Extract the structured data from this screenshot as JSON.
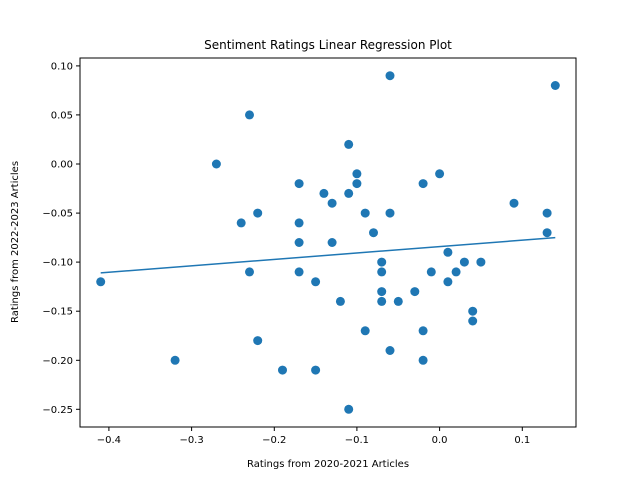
{
  "chart_data": {
    "type": "scatter",
    "title": "Sentiment Ratings Linear Regression Plot",
    "xlabel": "Ratings from 2020-2021 Articles",
    "ylabel": "Ratings from 2022-2023 Articles",
    "xlim": [
      -0.435,
      0.165
    ],
    "ylim": [
      -0.268,
      0.108
    ],
    "xticks": [
      -0.4,
      -0.3,
      -0.2,
      -0.1,
      0.0,
      0.1
    ],
    "xtick_labels": [
      "−0.4",
      "−0.3",
      "−0.2",
      "−0.1",
      "0.0",
      "0.1"
    ],
    "yticks": [
      0.1,
      0.05,
      0.0,
      -0.05,
      -0.1,
      -0.15,
      -0.2,
      -0.25
    ],
    "ytick_labels": [
      "0.10",
      "0.05",
      "0.00",
      "−0.05",
      "−0.10",
      "−0.15",
      "−0.20",
      "−0.25"
    ],
    "grid": false,
    "colors": {
      "points": "#1f77b4",
      "line": "#1f77b4"
    },
    "points": [
      [
        -0.41,
        -0.12
      ],
      [
        -0.32,
        -0.2
      ],
      [
        -0.27,
        0.0
      ],
      [
        -0.24,
        -0.06
      ],
      [
        -0.23,
        0.05
      ],
      [
        -0.23,
        -0.11
      ],
      [
        -0.22,
        -0.05
      ],
      [
        -0.22,
        -0.18
      ],
      [
        -0.19,
        -0.21
      ],
      [
        -0.17,
        -0.02
      ],
      [
        -0.17,
        -0.06
      ],
      [
        -0.17,
        -0.08
      ],
      [
        -0.17,
        -0.11
      ],
      [
        -0.15,
        -0.12
      ],
      [
        -0.15,
        -0.21
      ],
      [
        -0.14,
        -0.03
      ],
      [
        -0.13,
        -0.04
      ],
      [
        -0.13,
        -0.08
      ],
      [
        -0.12,
        -0.14
      ],
      [
        -0.11,
        0.02
      ],
      [
        -0.11,
        -0.03
      ],
      [
        -0.11,
        -0.25
      ],
      [
        -0.1,
        -0.01
      ],
      [
        -0.1,
        -0.02
      ],
      [
        -0.09,
        -0.05
      ],
      [
        -0.09,
        -0.17
      ],
      [
        -0.08,
        -0.07
      ],
      [
        -0.07,
        -0.1
      ],
      [
        -0.07,
        -0.11
      ],
      [
        -0.07,
        -0.13
      ],
      [
        -0.07,
        -0.14
      ],
      [
        -0.06,
        0.09
      ],
      [
        -0.06,
        -0.05
      ],
      [
        -0.06,
        -0.19
      ],
      [
        -0.05,
        -0.14
      ],
      [
        -0.03,
        -0.13
      ],
      [
        -0.02,
        -0.02
      ],
      [
        -0.02,
        -0.17
      ],
      [
        -0.02,
        -0.2
      ],
      [
        -0.01,
        -0.11
      ],
      [
        0.0,
        -0.01
      ],
      [
        0.01,
        -0.09
      ],
      [
        0.01,
        -0.12
      ],
      [
        0.02,
        -0.11
      ],
      [
        0.03,
        -0.1
      ],
      [
        0.04,
        -0.15
      ],
      [
        0.04,
        -0.16
      ],
      [
        0.05,
        -0.1
      ],
      [
        0.09,
        -0.04
      ],
      [
        0.13,
        -0.05
      ],
      [
        0.13,
        -0.07
      ],
      [
        0.14,
        0.08
      ]
    ],
    "regression_line": {
      "x": [
        -0.41,
        0.14
      ],
      "y": [
        -0.111,
        -0.075
      ]
    }
  }
}
